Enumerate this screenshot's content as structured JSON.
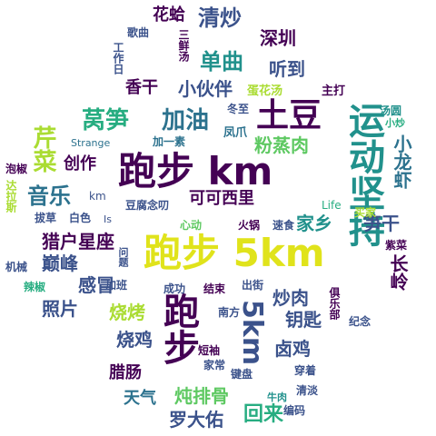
{
  "palette": {
    "purple": "#440154",
    "indigo": "#3b528b",
    "blue": "#2c728e",
    "teal": "#21918c",
    "green": "#27ad81",
    "lightgreen": "#5ec962",
    "lime": "#aadc32",
    "yellow": "#e0e31b"
  },
  "words": {
    "paobu_km_center": "跑步 km",
    "paobu_5km": "跑步 5km",
    "yundong_jianchi": "运动坚持",
    "tudou": "土豆",
    "paobu_vertical": "跑步",
    "5km_vertical": "5km",
    "woju": "莴笋",
    "jiayou": "加油",
    "qingchao": "清炒",
    "huage": "花蛤",
    "danqu": "单曲",
    "shenzhen": "深圳",
    "xiaohuoban": "小伙伴",
    "xianggan": "香干",
    "tingdao": "听到",
    "qincai": "芹菜",
    "yinyue": "音乐",
    "chuangzuo": "创作",
    "fenzhengrou": "粉蒸肉",
    "xiaolongxia": "小龙虾",
    "kekexili": "可可西里",
    "liehu_xingzuo": "猎户星座",
    "dianfeng": "巅峰",
    "ganmao": "感冒",
    "zhaopian": "照片",
    "shaokao": "烧烤",
    "shaoji": "烧鸡",
    "larou": "腊肠",
    "tianqi": "天气",
    "dunpaigu": "炖排骨",
    "luodayou": "罗大佑",
    "huilai": "回来",
    "luji": "卤鸡",
    "chaorou": "炒肉",
    "yaoshi": "钥匙",
    "jiaxiang": "家乡",
    "sungan": "笋干",
    "changling": "长岭",
    "gequ": "歌曲",
    "gongzuori": "工作日",
    "sanxian_tang": "三鲜汤",
    "danhua_tang": "蛋花汤",
    "zhuda": "主打",
    "tangtuan": "汤圆",
    "xiaochao": "小炒",
    "dongzhi": "冬至",
    "fengzhao": "凤爪",
    "jiayisu": "加一素",
    "strange": "Strange",
    "paojiao": "泡椒",
    "dalasi": "达拉斯",
    "bacao": "拔草",
    "km_small": "km",
    "baise": "白色",
    "is_word": "Is",
    "doufu_niandao": "豆腐念叨",
    "xindong": "心动",
    "huoguo": "火锅",
    "sushi": "速食",
    "life": "Life",
    "maijia": "买家",
    "zicai": "紫菜",
    "jixie": "机械",
    "lajiao": "辣椒",
    "wenti": "问题",
    "jiaban": "加班",
    "chenggong": "成功",
    "jieshu": "结束",
    "chujie": "出街",
    "julebu": "俱乐部",
    "jinian": "纪念",
    "nanfang": "南方",
    "duanxiu": "短袖",
    "jiachang": "家常",
    "jianpan": "键盘",
    "chuanzhuo": "穿着",
    "qingdan": "清淡",
    "niurou": "牛肉",
    "bianma": "编码"
  }
}
